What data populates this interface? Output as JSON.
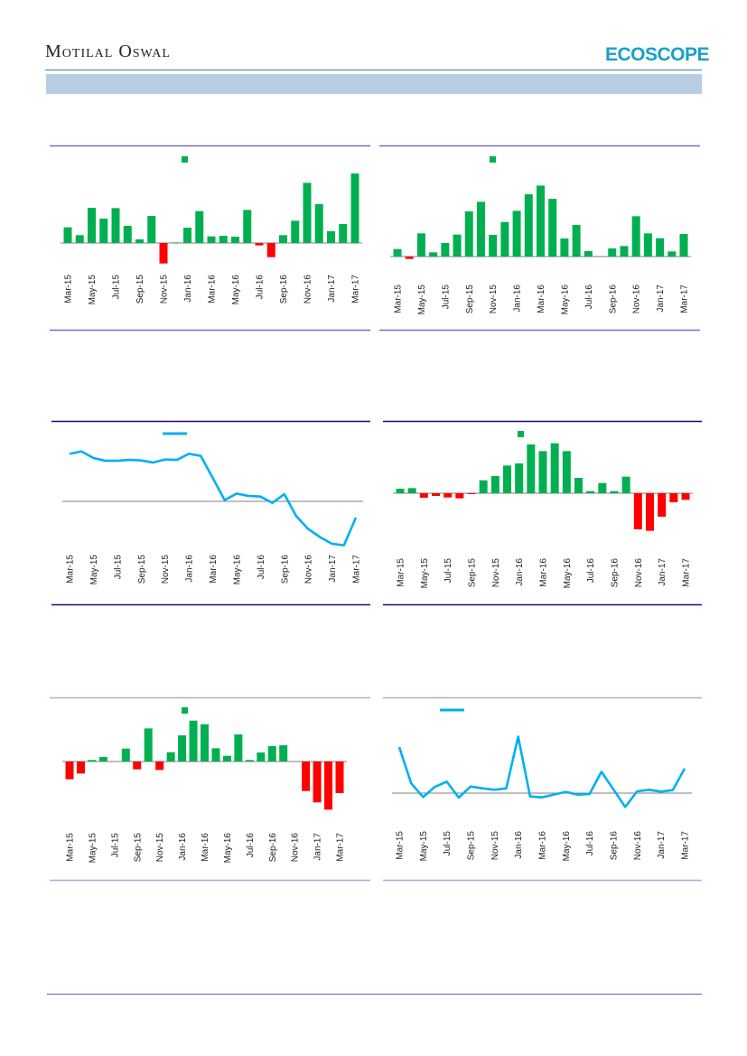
{
  "header": {
    "brand": "Motilal Oswal",
    "logo": "ECOSCOPE"
  },
  "colors": {
    "positive": "#00B050",
    "negative": "#FF0000",
    "line": "#00B0F0",
    "zero_line": "#808080"
  },
  "chart_data": [
    {
      "type": "bar",
      "legend": "top-center",
      "ylim": [
        -10,
        25
      ],
      "categories": [
        "Mar-15",
        "Apr-15",
        "May-15",
        "Jun-15",
        "Jul-15",
        "Aug-15",
        "Sep-15",
        "Oct-15",
        "Nov-15",
        "Dec-15",
        "Jan-16",
        "Feb-16",
        "Mar-16",
        "Apr-16",
        "May-16",
        "Jun-16",
        "Jul-16",
        "Aug-16",
        "Sep-16",
        "Oct-16",
        "Nov-16",
        "Dec-16",
        "Jan-17",
        "Feb-17",
        "Mar-17"
      ],
      "xticks": [
        "Mar-15",
        "May-15",
        "Jul-15",
        "Sep-15",
        "Nov-15",
        "Jan-16",
        "Mar-16",
        "May-16",
        "Jul-16",
        "Sep-16",
        "Nov-16",
        "Jan-17",
        "Mar-17"
      ],
      "values": [
        5.2,
        2.6,
        11.7,
        8.1,
        11.6,
        5.7,
        1.2,
        9.0,
        -6.8,
        0.2,
        5.1,
        10.6,
        2.2,
        2.4,
        2.1,
        11.0,
        -0.8,
        -4.7,
        2.6,
        7.4,
        20.0,
        12.9,
        3.9,
        6.3,
        23.1
      ]
    },
    {
      "type": "bar",
      "legend": "top-center",
      "ylim": [
        -2,
        25
      ],
      "categories": [
        "Mar-15",
        "Apr-15",
        "May-15",
        "Jun-15",
        "Jul-15",
        "Aug-15",
        "Sep-15",
        "Oct-15",
        "Nov-15",
        "Dec-15",
        "Jan-16",
        "Feb-16",
        "Mar-16",
        "Apr-16",
        "May-16",
        "Jun-16",
        "Jul-16",
        "Aug-16",
        "Sep-16",
        "Oct-16",
        "Nov-16",
        "Dec-16",
        "Jan-17",
        "Feb-17",
        "Mar-17"
      ],
      "xticks": [
        "Mar-15",
        "May-15",
        "Jul-15",
        "Sep-15",
        "Nov-15",
        "Jan-16",
        "Mar-16",
        "May-16",
        "Jul-16",
        "Sep-16",
        "Nov-16",
        "Jan-17",
        "Mar-17"
      ],
      "values": [
        2.5,
        -0.8,
        7.7,
        1.4,
        4.5,
        7.3,
        15.0,
        18.2,
        7.2,
        11.5,
        15.2,
        20.7,
        23.6,
        19.2,
        6.0,
        10.5,
        1.8,
        0,
        2.7,
        3.5,
        13.4,
        7.7,
        6.1,
        1.7,
        7.5
      ]
    },
    {
      "type": "line",
      "legend": "top-center",
      "ylim": [
        -16,
        18
      ],
      "categories": [
        "Mar-15",
        "Apr-15",
        "May-15",
        "Jun-15",
        "Jul-15",
        "Aug-15",
        "Sep-15",
        "Oct-15",
        "Nov-15",
        "Dec-15",
        "Jan-16",
        "Feb-16",
        "Mar-16",
        "Apr-16",
        "May-16",
        "Jun-16",
        "Jul-16",
        "Aug-16",
        "Sep-16",
        "Oct-16",
        "Nov-16",
        "Dec-16",
        "Jan-17",
        "Feb-17",
        "Mar-17"
      ],
      "xticks": [
        "Mar-15",
        "May-15",
        "Jul-15",
        "Sep-15",
        "Nov-15",
        "Jan-16",
        "Mar-16",
        "May-16",
        "Jul-16",
        "Sep-16",
        "Nov-16",
        "Jan-17",
        "Mar-17"
      ],
      "values": [
        15.8,
        16.6,
        14.4,
        13.5,
        13.5,
        13.8,
        13.6,
        12.9,
        13.9,
        13.8,
        15.8,
        15.1,
        7.8,
        0.4,
        2.6,
        1.8,
        1.6,
        -0.5,
        2.4,
        -4.9,
        -9.2,
        -11.9,
        -14.1,
        -14.6,
        -5.4
      ]
    },
    {
      "type": "bar",
      "legend": "top-center",
      "ylim": [
        -13,
        18
      ],
      "categories": [
        "Mar-15",
        "Apr-15",
        "May-15",
        "Jun-15",
        "Jul-15",
        "Aug-15",
        "Sep-15",
        "Oct-15",
        "Nov-15",
        "Dec-15",
        "Jan-16",
        "Feb-16",
        "Mar-16",
        "Apr-16",
        "May-16",
        "Jun-16",
        "Jul-16",
        "Aug-16",
        "Sep-16",
        "Oct-16",
        "Nov-16",
        "Dec-16",
        "Jan-17",
        "Feb-17",
        "Mar-17"
      ],
      "xticks": [
        "Mar-15",
        "May-15",
        "Jul-15",
        "Sep-15",
        "Nov-15",
        "Jan-16",
        "Mar-16",
        "May-16",
        "Jul-16",
        "Sep-16",
        "Nov-16",
        "Jan-17",
        "Mar-17"
      ],
      "values": [
        1.5,
        1.7,
        -1.5,
        -0.9,
        -1.4,
        -1.7,
        -0.3,
        4.3,
        5.7,
        9.2,
        9.9,
        16.2,
        14.0,
        16.6,
        14.0,
        5.1,
        0.7,
        3.4,
        0.7,
        5.5,
        -12.0,
        -12.5,
        -7.8,
        -3.0,
        -2.2
      ]
    },
    {
      "type": "bar",
      "legend": "top-center",
      "ylim": [
        -16,
        15
      ],
      "categories": [
        "Mar-15",
        "Apr-15",
        "May-15",
        "Jun-15",
        "Jul-15",
        "Aug-15",
        "Sep-15",
        "Oct-15",
        "Nov-15",
        "Dec-15",
        "Jan-16",
        "Feb-16",
        "Mar-16",
        "Apr-16",
        "May-16",
        "Jun-16",
        "Jul-16",
        "Aug-16",
        "Sep-16",
        "Oct-16",
        "Nov-16",
        "Dec-16",
        "Jan-17",
        "Feb-17",
        "Mar-17"
      ],
      "xticks": [
        "Mar-15",
        "May-15",
        "Jul-15",
        "Sep-15",
        "Nov-15",
        "Jan-16",
        "Mar-16",
        "May-16",
        "Jul-16",
        "Sep-16",
        "Nov-16",
        "Jan-17",
        "Mar-17"
      ],
      "values": [
        -5.9,
        -4.0,
        0.5,
        1.5,
        0,
        4.3,
        -2.6,
        11.0,
        -2.8,
        3.1,
        8.7,
        13.6,
        12.4,
        4.4,
        1.9,
        9.0,
        0.5,
        3.0,
        5.1,
        5.4,
        0,
        -9.8,
        -13.6,
        -16.0,
        -10.5
      ]
    },
    {
      "type": "line",
      "legend": "top-left",
      "ylim": [
        -5,
        20
      ],
      "categories": [
        "Mar-15",
        "Apr-15",
        "May-15",
        "Jun-15",
        "Jul-15",
        "Aug-15",
        "Sep-15",
        "Oct-15",
        "Nov-15",
        "Dec-15",
        "Jan-16",
        "Feb-16",
        "Mar-16",
        "Apr-16",
        "May-16",
        "Jun-16",
        "Jul-16",
        "Aug-16",
        "Sep-16",
        "Oct-16",
        "Nov-16",
        "Dec-16",
        "Jan-17",
        "Feb-17",
        "Mar-17"
      ],
      "xticks": [
        "Mar-15",
        "May-15",
        "Jul-15",
        "Sep-15",
        "Nov-15",
        "Jan-16",
        "Mar-16",
        "May-16",
        "Jul-16",
        "Sep-16",
        "Nov-16",
        "Jan-17",
        "Mar-17"
      ],
      "values": [
        15.3,
        3.3,
        -1.3,
        2.1,
        3.8,
        -1.5,
        2.2,
        1.6,
        1.1,
        1.6,
        18.8,
        -1.1,
        -1.4,
        -0.5,
        0.4,
        -0.5,
        -0.3,
        7.1,
        1.3,
        -4.6,
        0.6,
        1.1,
        0.5,
        1.0,
        8.2
      ]
    }
  ]
}
